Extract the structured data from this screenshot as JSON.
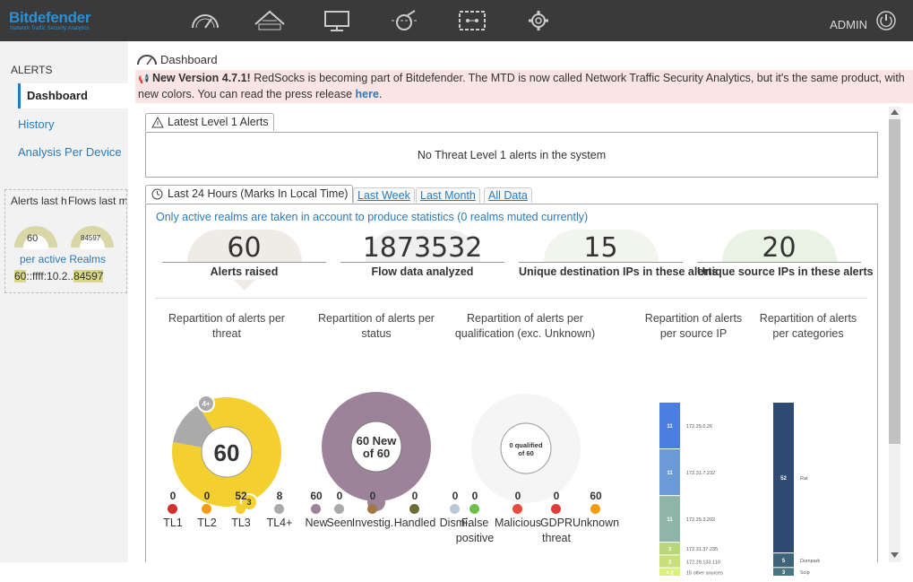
{
  "brand": {
    "name": "Bitdefender",
    "tagline": "Network Traffic Security Analytics",
    "accent": "#2b8fd6"
  },
  "topnav": {
    "icons": [
      "dashboard-gauge-icon",
      "network-icon",
      "monitor-icon",
      "cable-icon",
      "gear-icon"
    ],
    "user": "ADMIN"
  },
  "sidebar": {
    "heading": "ALERTS",
    "items": [
      {
        "label": "Dashboard"
      },
      {
        "label": "History"
      },
      {
        "label": "Analysis Per Device"
      }
    ],
    "mini": {
      "alerts_label": "Alerts last h",
      "flows_label": "Flows last m",
      "alerts_value": "60",
      "flows_value": "84597",
      "realms": "per active Realms",
      "row_alerts": "60",
      "row_ip": "::ffff:10.2..",
      "row_flows": "84597"
    }
  },
  "page": {
    "title": "Dashboard",
    "notice": {
      "bold": "New Version 4.7.1!",
      "text": " RedSocks is becoming part of Bitdefender. The MTD is now called Network Traffic Security Analytics, but it's the same product, with new colors. You can read the press release ",
      "link": "here",
      "end": "."
    },
    "tab_l1": "Latest Level 1 Alerts",
    "no_alerts": "No Threat Level 1 alerts in the system",
    "tabs": [
      {
        "label": "Last 24 Hours (Marks In Local Time)"
      },
      {
        "label": "Last Week"
      },
      {
        "label": "Last Month"
      },
      {
        "label": "All Data"
      }
    ],
    "realm_note": "Only active realms are taken in account to produce statistics (0 realms muted currently)",
    "stats": [
      {
        "value": "60",
        "label": "Alerts raised",
        "color": "#efebe6"
      },
      {
        "value": "1873532",
        "label": "Flow data analyzed",
        "color": "#f0f0f0"
      },
      {
        "value": "15",
        "label": "Unique destination IPs in these alerts",
        "color": "#f2f5ee"
      },
      {
        "value": "20",
        "label": "Unique source IPs in these alerts",
        "color": "#e8f3e3"
      }
    ]
  },
  "charts": {
    "threat": {
      "title": "Repartition of alerts per threat",
      "center": "60",
      "badge_top": "4+",
      "badge_bottom": "3"
    },
    "status": {
      "title": "Repartition of alerts per status",
      "center": "60 New of 60"
    },
    "qual": {
      "title": "Repartition of alerts per qualification (exc. Unknown)",
      "center": "0 qualified of 60"
    },
    "srcip": {
      "title": "Repartition of alerts per source IP"
    },
    "cat": {
      "title": "Repartition of alerts per categories"
    }
  },
  "chart_data": [
    {
      "type": "pie",
      "title": "Repartition of alerts per threat",
      "categories": [
        "TL1",
        "TL2",
        "TL3",
        "TL4+"
      ],
      "values": [
        0,
        0,
        52,
        8
      ],
      "colors": [
        "#d32f2f",
        "#f39c12",
        "#f4cf30",
        "#aaaaaa"
      ]
    },
    {
      "type": "pie",
      "title": "Repartition of alerts per status",
      "categories": [
        "New",
        "Seen",
        "Investig.",
        "Handled",
        "Dismi."
      ],
      "values": [
        60,
        0,
        0,
        0,
        0
      ],
      "colors": [
        "#9c8399",
        "#aaaaaa",
        "#a0784a",
        "#6b6b3a",
        "#b9c9d6"
      ]
    },
    {
      "type": "pie",
      "title": "Repartition of alerts per qualification (exc. Unknown)",
      "categories": [
        "False positive",
        "Malicious",
        "GDPR threat",
        "Unknown"
      ],
      "values": [
        0,
        0,
        0,
        60
      ],
      "colors": [
        "#6cc04a",
        "#e74c3c",
        "#e03c3c",
        "#f39c12"
      ]
    },
    {
      "type": "bar",
      "title": "Repartition of alerts per source IP",
      "categories": [
        "172.29.0.26",
        "172.31.7.232",
        "172.29.3.202",
        "172.31.37.235",
        "172.29.133.110",
        "15 other sources"
      ],
      "values": [
        11,
        11,
        11,
        3,
        3,
        2
      ],
      "labels": [
        "11",
        "11",
        "11",
        "3",
        "3",
        "< 2"
      ],
      "colors": [
        "#4a7fe0",
        "#6b9ad6",
        "#8fb5a9",
        "#b9d67a",
        "#c9e07a",
        "#d9f07a"
      ]
    },
    {
      "type": "bar",
      "title": "Repartition of alerts per categories",
      "categories": [
        "Rat",
        "Dumpark",
        "Scip"
      ],
      "values": [
        52,
        5,
        3
      ],
      "labels": [
        "52",
        "5",
        "3"
      ],
      "colors": [
        "#2e4a73",
        "#3d6478",
        "#4a7582"
      ]
    }
  ]
}
